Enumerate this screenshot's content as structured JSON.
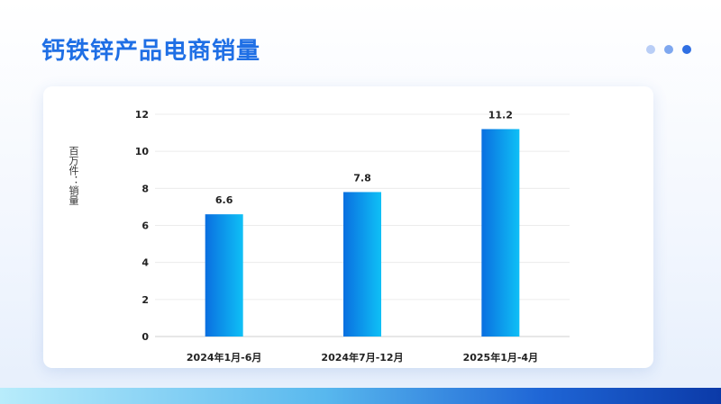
{
  "page": {
    "title": "钙铁锌产品电商销量"
  },
  "decor": {
    "dot_colors": [
      "#b9cef6",
      "#7ea7ef",
      "#2f6fe3"
    ],
    "accent": "#1f6fe5"
  },
  "chart_data": {
    "type": "bar",
    "title": "",
    "ylabel": "百万件：销量",
    "xlabel": "",
    "categories": [
      "2024年1月-6月",
      "2024年7月-12月",
      "2025年1月-4月"
    ],
    "values": [
      6.6,
      7.8,
      11.2
    ],
    "value_labels": [
      "6.6",
      "7.8",
      "11.2"
    ],
    "ylim": [
      0,
      12
    ],
    "yticks": [
      "0",
      "2",
      "4",
      "6",
      "8",
      "10",
      "12"
    ],
    "grid": true,
    "bar_gradient": [
      "#0a6fe0",
      "#0fc0f6"
    ]
  }
}
